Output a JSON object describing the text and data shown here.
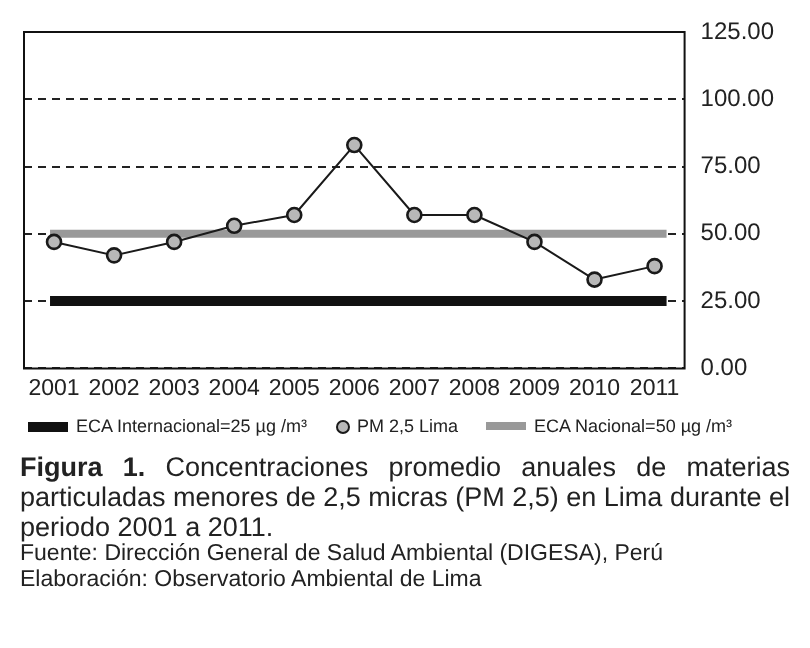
{
  "chart_data": {
    "type": "line",
    "categories": [
      "2001",
      "2002",
      "2003",
      "2004",
      "2005",
      "2006",
      "2007",
      "2008",
      "2009",
      "2010",
      "2011"
    ],
    "series": [
      {
        "name": "PM 2,5 Lima",
        "color": "#1a1a1a",
        "values": [
          47,
          42,
          47,
          53,
          57,
          83,
          57,
          57,
          47,
          33,
          38
        ]
      }
    ],
    "ylim": [
      0,
      125
    ],
    "yticks": [
      {
        "value": 0,
        "label": "0.00"
      },
      {
        "value": 25,
        "label": "25.00"
      },
      {
        "value": 50,
        "label": "50.00"
      },
      {
        "value": 75,
        "label": "75.00"
      },
      {
        "value": 100,
        "label": "100.00"
      },
      {
        "value": 125,
        "label": "125.00"
      }
    ],
    "grid": "y",
    "marker": "circle",
    "line_style": "solid",
    "legend": "bottom",
    "ref_lines": [
      {
        "axis": "y",
        "value": 25,
        "label": "ECA Internacional=25 µg /m³",
        "color": "#111111"
      },
      {
        "axis": "y",
        "value": 50,
        "label": "ECA Nacional=50 µg /m³",
        "color": "#999999"
      }
    ],
    "annotations": [
      "Figura 1. Concentraciones promedio anuales de materias particuladas menores de 2,5 micras (PM 2,5) en Lima durante el periodo 2001 a 2011.",
      "Fuente: Dirección General de Salud Ambiental (DIGESA), Perú",
      "Elaboración: Observatorio Ambiental de Lima"
    ]
  }
}
